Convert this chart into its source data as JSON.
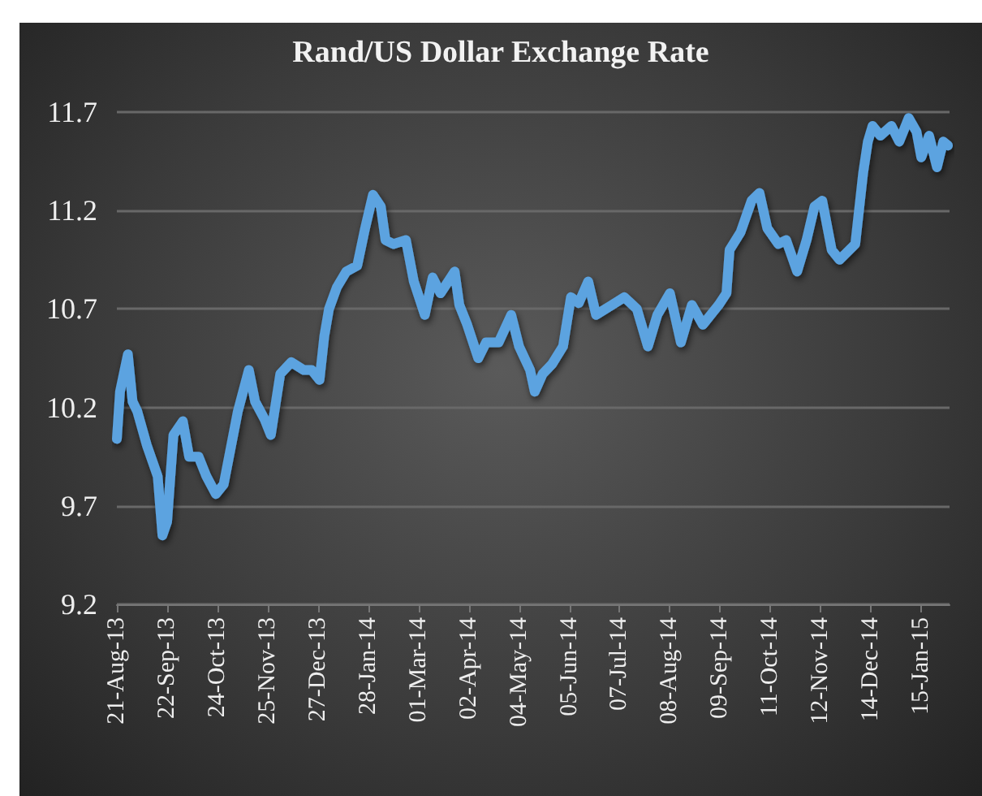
{
  "chart_data": {
    "type": "line",
    "title": "Rand/US Dollar Exchange Rate",
    "x": [
      "2013-08-21",
      "2013-08-23",
      "2013-08-28",
      "2013-08-31",
      "2013-09-03",
      "2013-09-09",
      "2013-09-16",
      "2013-09-19",
      "2013-09-22",
      "2013-09-26",
      "2013-10-02",
      "2013-10-06",
      "2013-10-12",
      "2013-10-17",
      "2013-10-23",
      "2013-10-28",
      "2013-11-06",
      "2013-11-13",
      "2013-11-17",
      "2013-11-23",
      "2013-11-27",
      "2013-12-03",
      "2013-12-10",
      "2013-12-18",
      "2013-12-23",
      "2013-12-28",
      "2013-12-31",
      "2014-01-03",
      "2014-01-08",
      "2014-01-14",
      "2014-01-21",
      "2014-01-26",
      "2014-01-31",
      "2014-02-05",
      "2014-02-08",
      "2014-02-13",
      "2014-02-21",
      "2014-02-26",
      "2014-03-05",
      "2014-03-10",
      "2014-03-15",
      "2014-03-24",
      "2014-03-27",
      "2014-04-01",
      "2014-04-08",
      "2014-04-13",
      "2014-04-21",
      "2014-04-29",
      "2014-05-04",
      "2014-05-11",
      "2014-05-14",
      "2014-05-19",
      "2014-05-25",
      "2014-06-01",
      "2014-06-06",
      "2014-06-11",
      "2014-06-17",
      "2014-06-22",
      "2014-07-02",
      "2014-07-10",
      "2014-07-18",
      "2014-07-25",
      "2014-07-31",
      "2014-08-08",
      "2014-08-15",
      "2014-08-22",
      "2014-08-29",
      "2014-09-08",
      "2014-09-13",
      "2014-09-15",
      "2014-09-22",
      "2014-09-29",
      "2014-10-04",
      "2014-10-09",
      "2014-10-16",
      "2014-10-21",
      "2014-10-28",
      "2014-11-03",
      "2014-11-08",
      "2014-11-13",
      "2014-11-19",
      "2014-11-24",
      "2014-12-04",
      "2014-12-09",
      "2014-12-12",
      "2014-12-15",
      "2014-12-20",
      "2014-12-27",
      "2015-01-01",
      "2015-01-07",
      "2015-01-12",
      "2015-01-15",
      "2015-01-20",
      "2015-01-25",
      "2015-01-29",
      "2015-02-01"
    ],
    "series": [
      {
        "color": "#5ba3e0",
        "values": [
          10.04,
          10.28,
          10.47,
          10.23,
          10.18,
          10.01,
          9.85,
          9.55,
          9.62,
          10.06,
          10.13,
          9.95,
          9.95,
          9.85,
          9.76,
          9.81,
          10.18,
          10.39,
          10.23,
          10.14,
          10.06,
          10.37,
          10.43,
          10.39,
          10.39,
          10.34,
          10.56,
          10.7,
          10.81,
          10.89,
          10.92,
          11.11,
          11.28,
          11.22,
          11.05,
          11.03,
          11.05,
          10.84,
          10.67,
          10.86,
          10.78,
          10.89,
          10.72,
          10.62,
          10.45,
          10.53,
          10.53,
          10.67,
          10.51,
          10.39,
          10.28,
          10.37,
          10.42,
          10.51,
          10.76,
          10.73,
          10.84,
          10.67,
          10.72,
          10.76,
          10.7,
          10.51,
          10.67,
          10.78,
          10.53,
          10.72,
          10.62,
          10.72,
          10.78,
          11.0,
          11.09,
          11.25,
          11.29,
          11.11,
          11.03,
          11.05,
          10.89,
          11.05,
          11.22,
          11.25,
          11.0,
          10.95,
          11.03,
          11.39,
          11.55,
          11.63,
          11.58,
          11.63,
          11.55,
          11.67,
          11.6,
          11.47,
          11.58,
          11.42,
          11.55,
          11.53
        ]
      }
    ],
    "xlim": [
      "2013-08-21",
      "2015-02-02"
    ],
    "xticks": [
      {
        "value": "2013-08-21",
        "label": "21-Aug-13"
      },
      {
        "value": "2013-09-22",
        "label": "22-Sep-13"
      },
      {
        "value": "2013-10-24",
        "label": "24-Oct-13"
      },
      {
        "value": "2013-11-25",
        "label": "25-Nov-13"
      },
      {
        "value": "2013-12-27",
        "label": "27-Dec-13"
      },
      {
        "value": "2014-01-28",
        "label": "28-Jan-14"
      },
      {
        "value": "2014-03-01",
        "label": "01-Mar-14"
      },
      {
        "value": "2014-04-02",
        "label": "02-Apr-14"
      },
      {
        "value": "2014-05-04",
        "label": "04-May-14"
      },
      {
        "value": "2014-06-05",
        "label": "05-Jun-14"
      },
      {
        "value": "2014-07-07",
        "label": "07-Jul-14"
      },
      {
        "value": "2014-08-08",
        "label": "08-Aug-14"
      },
      {
        "value": "2014-09-09",
        "label": "09-Sep-14"
      },
      {
        "value": "2014-10-11",
        "label": "11-Oct-14"
      },
      {
        "value": "2014-11-12",
        "label": "12-Nov-14"
      },
      {
        "value": "2014-12-14",
        "label": "14-Dec-14"
      },
      {
        "value": "2015-01-15",
        "label": "15-Jan-15"
      }
    ],
    "ylim": [
      9.2,
      11.7
    ],
    "yticks": [
      9.2,
      9.7,
      10.2,
      10.7,
      11.2,
      11.7
    ],
    "grid": "y",
    "marker": "none",
    "line_style": "solid"
  }
}
